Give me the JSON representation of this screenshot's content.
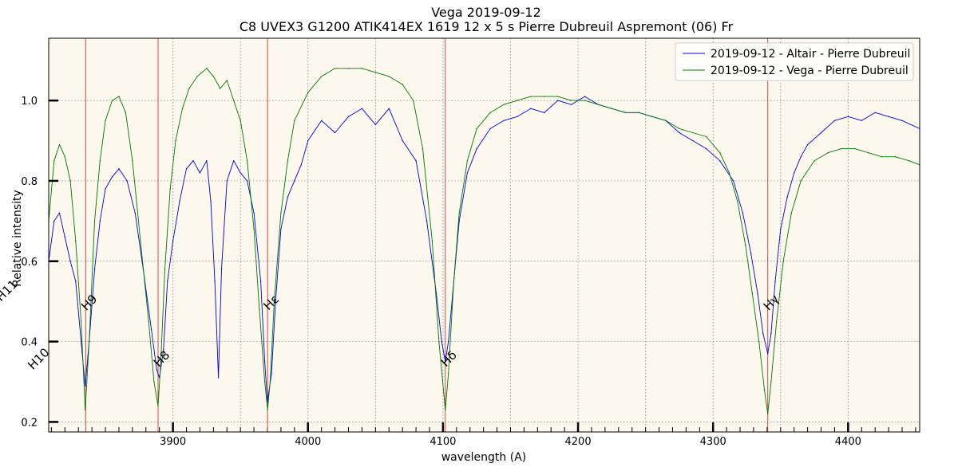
{
  "chart_data": {
    "type": "line",
    "title": "Vega 2019-09-12",
    "subtitle": "C8 UVEX3 G1200 ATIK414EX 1619 12 x 5 s Pierre Dubreuil Aspremont (06) Fr",
    "xlabel": "wavelength (A)",
    "ylabel": "Relative intensity",
    "xlim": [
      3808,
      4453
    ],
    "ylim": [
      0.175,
      1.155
    ],
    "xticks": [
      3900,
      4000,
      4100,
      4200,
      4300,
      4400
    ],
    "yticks": [
      0.2,
      0.4,
      0.6,
      0.8,
      1.0
    ],
    "ytick_labels": [
      "0.2",
      "0.4",
      "0.6",
      "0.8",
      "1.0"
    ],
    "grid": true,
    "legend_position": "top-right",
    "background": "#fcf8ee",
    "lines": [
      {
        "label": "H11",
        "x": 3770.6,
        "label_y": 0.52
      },
      {
        "label": "H10",
        "x": 3797.9,
        "label_y": 0.35
      },
      {
        "label": "H9",
        "x": 3835.4,
        "label_y": 0.49
      },
      {
        "label": "H8",
        "x": 3889.0,
        "label_y": 0.35
      },
      {
        "label": "Hε",
        "x": 3970.1,
        "label_y": 0.49
      },
      {
        "label": "Hδ",
        "x": 4101.7,
        "label_y": 0.35
      },
      {
        "label": "Hγ",
        "x": 4340.5,
        "label_y": 0.49
      }
    ],
    "line_color": "#dd3333",
    "series": [
      {
        "name": "2019-09-12 - Altair - Pierre Dubreuil",
        "color": "#0000dd",
        "x": [
          3808,
          3812,
          3816,
          3820,
          3824,
          3828,
          3832,
          3835,
          3838,
          3842,
          3846,
          3850,
          3855,
          3860,
          3866,
          3872,
          3878,
          3884,
          3888,
          3890,
          3893,
          3896,
          3900,
          3905,
          3910,
          3915,
          3920,
          3925,
          3928,
          3931,
          3933.7,
          3936,
          3940,
          3945,
          3950,
          3955,
          3960,
          3965,
          3968,
          3970,
          3973,
          3976,
          3980,
          3985,
          3990,
          3995,
          4000,
          4010,
          4020,
          4030,
          4040,
          4050,
          4060,
          4070,
          4080,
          4088,
          4095,
          4099,
          4101.7,
          4104,
          4108,
          4112,
          4118,
          4125,
          4135,
          4145,
          4155,
          4165,
          4175,
          4185,
          4195,
          4205,
          4215,
          4225,
          4235,
          4245,
          4255,
          4265,
          4275,
          4285,
          4295,
          4305,
          4315,
          4322,
          4328,
          4333,
          4337,
          4340.5,
          4343,
          4346,
          4350,
          4355,
          4360,
          4365,
          4370,
          4380,
          4390,
          4400,
          4410,
          4420,
          4430,
          4440,
          4453
        ],
        "y": [
          0.6,
          0.7,
          0.72,
          0.66,
          0.6,
          0.55,
          0.4,
          0.29,
          0.4,
          0.58,
          0.7,
          0.78,
          0.81,
          0.83,
          0.8,
          0.72,
          0.58,
          0.43,
          0.33,
          0.31,
          0.38,
          0.55,
          0.65,
          0.75,
          0.83,
          0.85,
          0.82,
          0.85,
          0.75,
          0.55,
          0.31,
          0.58,
          0.8,
          0.85,
          0.82,
          0.8,
          0.72,
          0.55,
          0.35,
          0.25,
          0.32,
          0.5,
          0.68,
          0.76,
          0.8,
          0.84,
          0.9,
          0.95,
          0.92,
          0.96,
          0.98,
          0.94,
          0.98,
          0.9,
          0.85,
          0.7,
          0.52,
          0.4,
          0.35,
          0.4,
          0.55,
          0.7,
          0.82,
          0.88,
          0.93,
          0.95,
          0.96,
          0.98,
          0.97,
          1.0,
          0.99,
          1.01,
          0.99,
          0.98,
          0.97,
          0.97,
          0.96,
          0.95,
          0.92,
          0.9,
          0.88,
          0.85,
          0.8,
          0.72,
          0.62,
          0.52,
          0.42,
          0.37,
          0.42,
          0.55,
          0.68,
          0.76,
          0.82,
          0.86,
          0.89,
          0.92,
          0.95,
          0.96,
          0.95,
          0.97,
          0.96,
          0.95,
          0.93
        ]
      },
      {
        "name": "2019-09-12 - Vega - Pierre Dubreuil",
        "color": "#007700",
        "x": [
          3808,
          3812,
          3816,
          3820,
          3824,
          3828,
          3832,
          3835,
          3838,
          3842,
          3846,
          3850,
          3855,
          3860,
          3865,
          3870,
          3876,
          3882,
          3886,
          3889,
          3891,
          3894,
          3898,
          3902,
          3907,
          3912,
          3918,
          3925,
          3930,
          3935,
          3940,
          3945,
          3950,
          3955,
          3960,
          3964,
          3968,
          3970.1,
          3972,
          3975,
          3980,
          3985,
          3990,
          4000,
          4010,
          4020,
          4030,
          4040,
          4050,
          4060,
          4070,
          4078,
          4085,
          4092,
          4097,
          4101.7,
          4104,
          4108,
          4112,
          4118,
          4125,
          4135,
          4145,
          4155,
          4165,
          4175,
          4185,
          4195,
          4205,
          4215,
          4225,
          4235,
          4245,
          4255,
          4265,
          4275,
          4285,
          4295,
          4305,
          4312,
          4318,
          4324,
          4329,
          4334,
          4338,
          4340.5,
          4343,
          4347,
          4352,
          4358,
          4365,
          4375,
          4385,
          4395,
          4405,
          4415,
          4425,
          4435,
          4445,
          4453
        ],
        "y": [
          0.7,
          0.85,
          0.89,
          0.86,
          0.8,
          0.65,
          0.45,
          0.23,
          0.4,
          0.7,
          0.85,
          0.95,
          1.0,
          1.01,
          0.97,
          0.85,
          0.65,
          0.45,
          0.3,
          0.24,
          0.35,
          0.58,
          0.78,
          0.9,
          0.98,
          1.03,
          1.06,
          1.08,
          1.06,
          1.03,
          1.05,
          1.0,
          0.95,
          0.85,
          0.68,
          0.48,
          0.3,
          0.23,
          0.3,
          0.5,
          0.72,
          0.85,
          0.95,
          1.02,
          1.06,
          1.08,
          1.08,
          1.08,
          1.07,
          1.06,
          1.04,
          1.0,
          0.88,
          0.65,
          0.4,
          0.23,
          0.32,
          0.55,
          0.72,
          0.85,
          0.93,
          0.97,
          0.99,
          1.0,
          1.01,
          1.01,
          1.01,
          1.0,
          1.0,
          0.99,
          0.98,
          0.97,
          0.97,
          0.96,
          0.95,
          0.93,
          0.92,
          0.91,
          0.87,
          0.82,
          0.75,
          0.64,
          0.52,
          0.4,
          0.28,
          0.22,
          0.3,
          0.45,
          0.6,
          0.72,
          0.8,
          0.85,
          0.87,
          0.88,
          0.88,
          0.87,
          0.86,
          0.86,
          0.85,
          0.84
        ]
      }
    ]
  }
}
